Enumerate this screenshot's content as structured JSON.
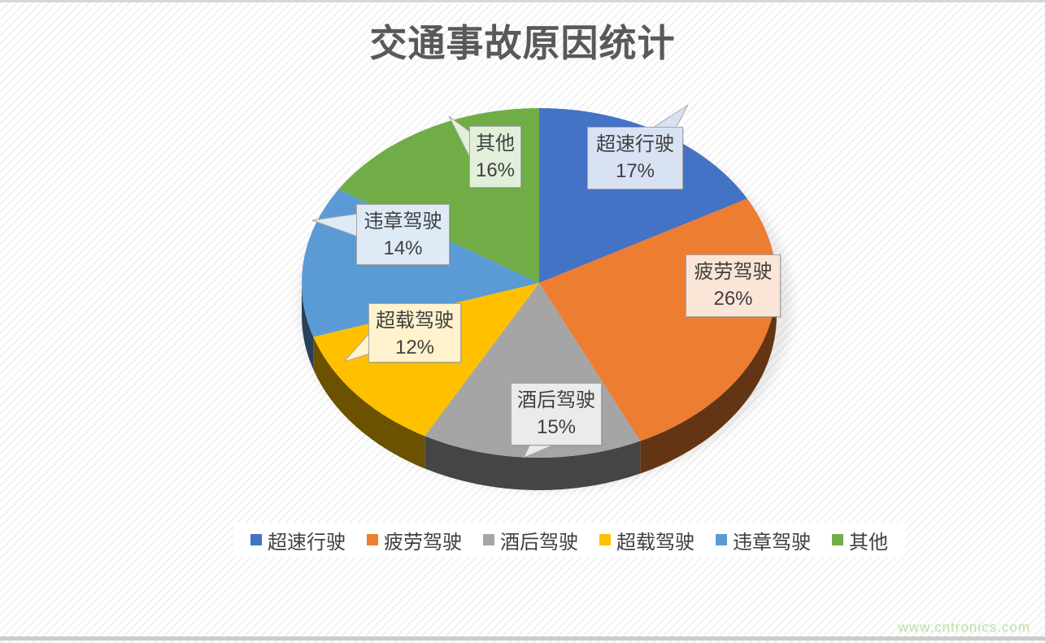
{
  "chart_data": {
    "type": "pie",
    "style": "3d",
    "title": "交通事故原因统计",
    "legend_position": "bottom",
    "start_angle_deg": 0,
    "direction": "clockwise",
    "slices": [
      {
        "label": "超速行驶",
        "value_pct": 17,
        "pct_label": "17%",
        "color": "#4472C4",
        "callout_bg": "#D9E2F3"
      },
      {
        "label": "疲劳驾驶",
        "value_pct": 26,
        "pct_label": "26%",
        "color": "#ED7D31",
        "callout_bg": "#FBE5D6"
      },
      {
        "label": "酒后驾驶",
        "value_pct": 15,
        "pct_label": "15%",
        "color": "#A5A5A5",
        "callout_bg": "#EBEBEB"
      },
      {
        "label": "超载驾驶",
        "value_pct": 12,
        "pct_label": "12%",
        "color": "#FFC000",
        "callout_bg": "#FFF2CC"
      },
      {
        "label": "违章驾驶",
        "value_pct": 14,
        "pct_label": "14%",
        "color": "#5B9BD5",
        "callout_bg": "#DEEBF7"
      },
      {
        "label": "其他",
        "value_pct": 16,
        "pct_label": "16%",
        "color": "#70AD47",
        "callout_bg": "#E2EFDA"
      }
    ]
  },
  "watermark": "www.cntronics.com"
}
